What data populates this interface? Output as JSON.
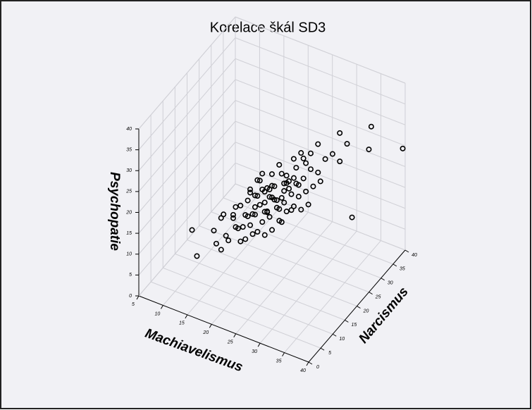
{
  "chart_data": {
    "type": "scatter3d",
    "title": "Korelace škál SD3",
    "x_label": "Machiavelismus",
    "y_label": "Narcismus",
    "z_label": "Psychopatie",
    "xlim": [
      5,
      40
    ],
    "xticks": [
      5,
      10,
      15,
      20,
      25,
      30,
      35,
      40
    ],
    "ylim": [
      0,
      40
    ],
    "yticks": [
      0,
      5,
      10,
      15,
      20,
      25,
      30,
      35,
      40
    ],
    "zlim": [
      0,
      40
    ],
    "zticks": [
      0,
      5,
      10,
      15,
      20,
      25,
      30,
      35,
      40
    ],
    "grid": true,
    "color": "#000000",
    "x": [
      20,
      22,
      18,
      25,
      24,
      21,
      19,
      27,
      23,
      26,
      16,
      28,
      22,
      20,
      24,
      30,
      17,
      21,
      25,
      23,
      19,
      26,
      29,
      15,
      22,
      24,
      20,
      27,
      18,
      23,
      31,
      14,
      21,
      25,
      20,
      28,
      17,
      22,
      26,
      24,
      19,
      33,
      21,
      16,
      27,
      23,
      25,
      18,
      29,
      20,
      22,
      24,
      12,
      35,
      26,
      21,
      19,
      30,
      17,
      23,
      25,
      28,
      20,
      22,
      18,
      27,
      24,
      16,
      32,
      21,
      26,
      19,
      23,
      14,
      25,
      29,
      20,
      22,
      31,
      18,
      24,
      27,
      21,
      10,
      26,
      23,
      17,
      28,
      20,
      25,
      36,
      22,
      19,
      24,
      38,
      40,
      15,
      26,
      21,
      23
    ],
    "y": [
      18,
      20,
      15,
      22,
      19,
      21,
      17,
      24,
      18,
      23,
      14,
      25,
      22,
      16,
      24,
      27,
      18,
      15,
      20,
      23,
      20,
      21,
      26,
      12,
      17,
      22,
      19,
      22,
      19,
      20,
      28,
      16,
      18,
      25,
      14,
      23,
      13,
      21,
      26,
      17,
      16,
      30,
      23,
      17,
      27,
      16,
      18,
      14,
      24,
      21,
      19,
      21,
      10,
      36,
      19,
      20,
      18,
      25,
      15,
      21,
      23,
      28,
      17,
      24,
      17,
      20,
      26,
      12,
      29,
      16,
      24,
      21,
      19,
      13,
      21,
      22,
      22,
      15,
      31,
      20,
      20,
      25,
      19,
      12,
      22,
      24,
      16,
      21,
      20,
      19,
      33,
      18,
      14,
      23,
      22,
      39,
      15,
      25,
      22,
      17
    ],
    "z": [
      16,
      18,
      12,
      20,
      17,
      19,
      14,
      22,
      15,
      21,
      10,
      24,
      16,
      13,
      20,
      26,
      15,
      12,
      18,
      22,
      17,
      16,
      23,
      9,
      14,
      19,
      18,
      19,
      16,
      21,
      27,
      12,
      17,
      23,
      11,
      20,
      10,
      20,
      25,
      13,
      15,
      29,
      21,
      13,
      26,
      12,
      15,
      13,
      21,
      22,
      15,
      18,
      6,
      30,
      17,
      14,
      19,
      22,
      14,
      17,
      18,
      28,
      15,
      23,
      11,
      18,
      24,
      8,
      25,
      16,
      20,
      20,
      19,
      11,
      22,
      18,
      17,
      13,
      30,
      18,
      16,
      25,
      20,
      10,
      23,
      19,
      16,
      17,
      21,
      14,
      27,
      18,
      10,
      22,
      19,
      25,
      14,
      27,
      18,
      17
    ]
  }
}
